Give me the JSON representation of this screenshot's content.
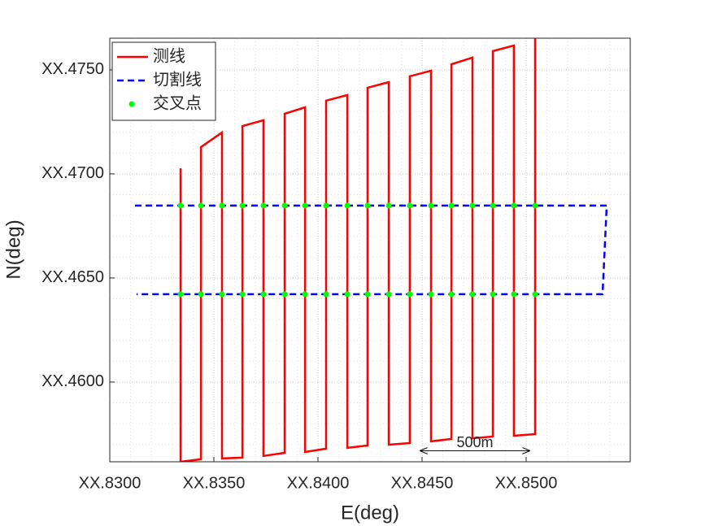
{
  "chart_data": {
    "type": "line",
    "xlabel": "E(deg)",
    "ylabel": "N(deg)",
    "xlim": [
      0.83,
      0.855
    ],
    "ylim": [
      0.45617,
      0.47652
    ],
    "xticks": [
      {
        "value": 0.83,
        "label": "XX.8300"
      },
      {
        "value": 0.835,
        "label": "XX.8350"
      },
      {
        "value": 0.84,
        "label": "XX.8400"
      },
      {
        "value": 0.845,
        "label": "XX.8450"
      },
      {
        "value": 0.85,
        "label": "XX.8500"
      }
    ],
    "yticks": [
      {
        "value": 0.46,
        "label": "XX.4600"
      },
      {
        "value": 0.465,
        "label": "XX.4650"
      },
      {
        "value": 0.47,
        "label": "XX.4700"
      },
      {
        "value": 0.475,
        "label": "XX.4750"
      }
    ],
    "grid": true,
    "minor_grid": true,
    "legend": "upper left",
    "series": [
      {
        "name": "测线",
        "color": "#ff0000",
        "style": "solid",
        "x": [
          0.8334,
          0.8334,
          0.83438,
          0.83438,
          0.83539,
          0.83539,
          0.83637,
          0.83637,
          0.83738,
          0.83738,
          0.8384,
          0.8384,
          0.83938,
          0.83938,
          0.84039,
          0.84039,
          0.84141,
          0.84141,
          0.84238,
          0.84238,
          0.8434,
          0.8434,
          0.84441,
          0.84441,
          0.84543,
          0.84543,
          0.84641,
          0.84641,
          0.84742,
          0.84742,
          0.8484,
          0.8484,
          0.84941,
          0.84941,
          0.85043,
          0.85043
        ],
        "values": [
          0.47027,
          0.45617,
          0.45629,
          0.47129,
          0.47199,
          0.45633,
          0.45637,
          0.4723,
          0.47258,
          0.45645,
          0.4566,
          0.47289,
          0.4732,
          0.45664,
          0.4568,
          0.47352,
          0.47379,
          0.45684,
          0.45695,
          0.47414,
          0.47441,
          0.45699,
          0.45707,
          0.47469,
          0.47496,
          0.45715,
          0.45727,
          0.47527,
          0.47559,
          0.4573,
          0.45738,
          0.4759,
          0.47617,
          0.45742,
          0.4575,
          0.4768
        ]
      },
      {
        "name": "切割线",
        "color": "#0000ff",
        "style": "dashed",
        "x": [
          0.83121,
          0.85387,
          0.85367,
          0.83129
        ],
        "values": [
          0.46848,
          0.46848,
          0.46422,
          0.46422
        ]
      },
      {
        "name": "交叉点",
        "color": "#00ff00",
        "style": "markers",
        "x": [
          0.8334,
          0.83438,
          0.83539,
          0.83637,
          0.83738,
          0.8384,
          0.83938,
          0.84039,
          0.84141,
          0.84238,
          0.8434,
          0.84441,
          0.84543,
          0.84641,
          0.84742,
          0.8484,
          0.84941,
          0.85043,
          0.8334,
          0.83438,
          0.83539,
          0.83637,
          0.83738,
          0.8384,
          0.83938,
          0.84039,
          0.84141,
          0.84238,
          0.8434,
          0.84441,
          0.84543,
          0.84641,
          0.84742,
          0.8484,
          0.84941,
          0.85043
        ],
        "values": [
          0.46848,
          0.46848,
          0.46848,
          0.46848,
          0.46848,
          0.46848,
          0.46848,
          0.46848,
          0.46848,
          0.46848,
          0.46848,
          0.46848,
          0.46848,
          0.46848,
          0.46848,
          0.46848,
          0.46848,
          0.46848,
          0.46422,
          0.46422,
          0.46422,
          0.46422,
          0.46422,
          0.46422,
          0.46422,
          0.46422,
          0.46422,
          0.46422,
          0.46422,
          0.46422,
          0.46422,
          0.46422,
          0.46422,
          0.46422,
          0.46422,
          0.46422
        ]
      }
    ],
    "annotation": {
      "text": "500m",
      "x": [
        0.84492,
        0.85016
      ],
      "y": 0.4567
    }
  }
}
